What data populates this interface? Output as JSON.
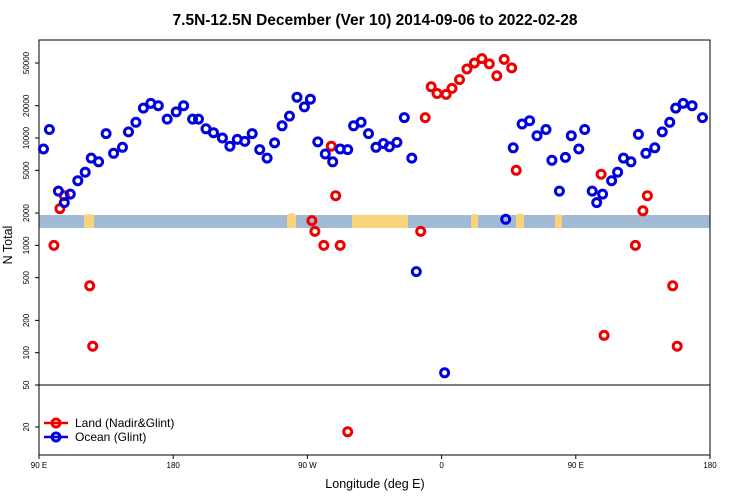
{
  "chart_data": {
    "type": "scatter",
    "title": "7.5N-12.5N December (Ver 10)   2014-09-06 to 2022-02-28",
    "xlabel": "Longitude (deg E)",
    "ylabel": "N Total",
    "x_scale": "longitude, wraps from 90 E eastward to 180 (450 deg span)",
    "y_scale": "log",
    "xlim": [
      90,
      540
    ],
    "ylim_main": [
      50,
      90000
    ],
    "ylim_lower": [
      10,
      50
    ],
    "x_ticks": [
      {
        "value": 90,
        "label": "90 E"
      },
      {
        "value": 180,
        "label": "180"
      },
      {
        "value": 270,
        "label": "90 W"
      },
      {
        "value": 360,
        "label": "0"
      },
      {
        "value": 450,
        "label": "90 E"
      },
      {
        "value": 540,
        "label": "180"
      }
    ],
    "y_ticks_main": [
      50,
      100,
      200,
      500,
      1000,
      2000,
      5000,
      10000,
      20000,
      50000
    ],
    "y_ticks_lower": [
      20
    ],
    "land_band_color": "#f7d479",
    "ocean_band_color": "#a3bad6",
    "legend_position": "bottom-left",
    "series": [
      {
        "name": "Land (Nadir&Glint)",
        "color": "#ee0000",
        "points": [
          [
            100,
            1000
          ],
          [
            104,
            2200
          ],
          [
            107,
            2900
          ],
          [
            124,
            420
          ],
          [
            126,
            115
          ],
          [
            273,
            1700
          ],
          [
            275,
            1350
          ],
          [
            281,
            1000
          ],
          [
            286,
            8400
          ],
          [
            289,
            2900
          ],
          [
            292,
            1000
          ],
          [
            297,
            18
          ],
          [
            346,
            1350
          ],
          [
            349,
            15500
          ],
          [
            353,
            30000
          ],
          [
            357,
            26000
          ],
          [
            363,
            25500
          ],
          [
            367,
            29000
          ],
          [
            372,
            35000
          ],
          [
            377,
            44000
          ],
          [
            382,
            50000
          ],
          [
            387,
            55000
          ],
          [
            392,
            49000
          ],
          [
            397,
            38000
          ],
          [
            402,
            54000
          ],
          [
            407,
            45000
          ],
          [
            410,
            5000
          ],
          [
            467,
            4600
          ],
          [
            469,
            145
          ],
          [
            490,
            1000
          ],
          [
            495,
            2100
          ],
          [
            498,
            2900
          ],
          [
            515,
            420
          ],
          [
            518,
            115
          ]
        ]
      },
      {
        "name": "Ocean (Glint)",
        "color": "#0000dd",
        "points": [
          [
            93,
            7900
          ],
          [
            97,
            12000
          ],
          [
            103,
            3200
          ],
          [
            107,
            2500
          ],
          [
            111,
            3000
          ],
          [
            116,
            4000
          ],
          [
            121,
            4800
          ],
          [
            125,
            6500
          ],
          [
            130,
            6000
          ],
          [
            135,
            11000
          ],
          [
            140,
            7200
          ],
          [
            146,
            8200
          ],
          [
            150,
            11400
          ],
          [
            155,
            14000
          ],
          [
            160,
            19000
          ],
          [
            165,
            21000
          ],
          [
            170,
            20000
          ],
          [
            176,
            15000
          ],
          [
            182,
            17500
          ],
          [
            187,
            20000
          ],
          [
            193,
            15000
          ],
          [
            197,
            15000
          ],
          [
            202,
            12200
          ],
          [
            207,
            11200
          ],
          [
            213,
            10000
          ],
          [
            218,
            8400
          ],
          [
            223,
            9700
          ],
          [
            228,
            9300
          ],
          [
            233,
            11000
          ],
          [
            238,
            7800
          ],
          [
            243,
            6500
          ],
          [
            248,
            9000
          ],
          [
            253,
            13000
          ],
          [
            258,
            16000
          ],
          [
            263,
            24000
          ],
          [
            268,
            19500
          ],
          [
            272,
            23000
          ],
          [
            277,
            9200
          ],
          [
            282,
            7100
          ],
          [
            287,
            6000
          ],
          [
            292,
            7900
          ],
          [
            297,
            7800
          ],
          [
            301,
            13000
          ],
          [
            306,
            14000
          ],
          [
            311,
            11000
          ],
          [
            316,
            8200
          ],
          [
            321,
            8900
          ],
          [
            325,
            8300
          ],
          [
            330,
            9100
          ],
          [
            335,
            15500
          ],
          [
            340,
            6500
          ],
          [
            343,
            570
          ],
          [
            362,
            65
          ],
          [
            403,
            1750
          ],
          [
            408,
            8100
          ],
          [
            414,
            13500
          ],
          [
            419,
            14500
          ],
          [
            424,
            10500
          ],
          [
            430,
            12000
          ],
          [
            434,
            6200
          ],
          [
            439,
            3200
          ],
          [
            443,
            6600
          ],
          [
            447,
            10500
          ],
          [
            452,
            7900
          ],
          [
            456,
            12000
          ],
          [
            461,
            3200
          ],
          [
            464,
            2500
          ],
          [
            468,
            3000
          ],
          [
            474,
            4000
          ],
          [
            478,
            4800
          ],
          [
            482,
            6500
          ],
          [
            487,
            6000
          ],
          [
            492,
            10800
          ],
          [
            497,
            7200
          ],
          [
            503,
            8100
          ],
          [
            508,
            11400
          ],
          [
            513,
            14000
          ],
          [
            517,
            19000
          ],
          [
            522,
            21000
          ],
          [
            528,
            20000
          ],
          [
            535,
            15500
          ]
        ]
      }
    ]
  }
}
